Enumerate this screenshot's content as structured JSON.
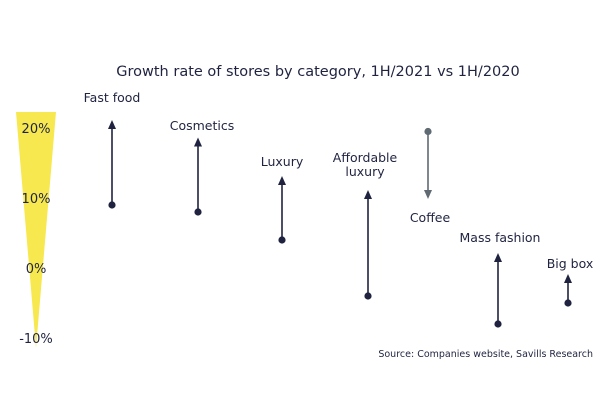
{
  "chart_data": {
    "type": "arrow",
    "title": "Growth rate of stores by category, 1H/2021 vs 1H/2020",
    "source": "Source: Companies website, Savills Research",
    "ylim": [
      -10,
      20
    ],
    "yticks": [
      {
        "label": "20%",
        "value": 20
      },
      {
        "label": "10%",
        "value": 10
      },
      {
        "label": "0%",
        "value": 0
      },
      {
        "label": "-10%",
        "value": -10
      }
    ],
    "categories": [
      {
        "label": [
          "Fast food"
        ],
        "start": 9,
        "end": 21
      },
      {
        "label": [
          "Cosmetics"
        ],
        "start": 8,
        "end": 18.5
      },
      {
        "label": [
          "Luxury"
        ],
        "start": 4,
        "end": 13
      },
      {
        "label": [
          "Affordable",
          "luxury"
        ],
        "start": -4,
        "end": 11
      },
      {
        "label": [
          "Coffee"
        ],
        "start": 19.5,
        "end": 10
      },
      {
        "label": [
          "Mass fashion"
        ],
        "start": -8,
        "end": 2
      },
      {
        "label": [
          "Big box"
        ],
        "start": -5,
        "end": -1
      }
    ],
    "colors": {
      "up": "#1f2340",
      "down": "#5f6a72",
      "accent": "#f7e84f",
      "text": "#1f2340"
    }
  }
}
